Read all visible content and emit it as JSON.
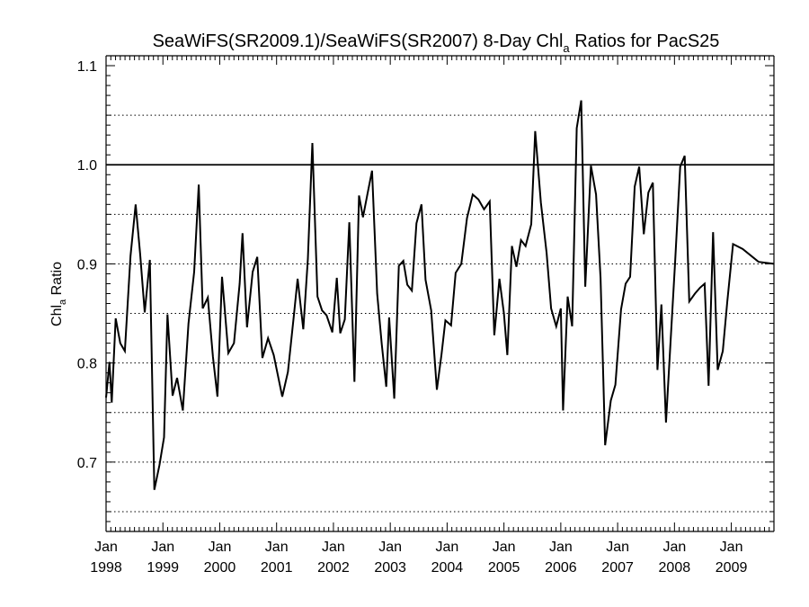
{
  "chart_data": {
    "type": "line",
    "title": {
      "prefix": "SeaWiFS(SR2009.1)/SeaWiFS(SR2007) 8-Day Chl",
      "subscript": "a",
      "suffix": " Ratios for PacS25"
    },
    "ylabel": {
      "prefix": "Chl",
      "subscript": "a",
      "suffix": " Ratio"
    },
    "ylim": [
      0.63,
      1.11
    ],
    "xlim": [
      1998.0,
      2009.75
    ],
    "y_ticks": [
      0.7,
      0.8,
      0.9,
      1.0,
      1.1
    ],
    "y_tick_labels": [
      "0.7",
      "0.8",
      "0.9",
      "1.0",
      "1.1"
    ],
    "y_minor_step": 0.01,
    "x_ticks": [
      {
        "year": 1998,
        "top": "Jan",
        "bottom": "1998"
      },
      {
        "year": 1999,
        "top": "Jan",
        "bottom": "1999"
      },
      {
        "year": 2000,
        "top": "Jan",
        "bottom": "2000"
      },
      {
        "year": 2001,
        "top": "Jan",
        "bottom": "2001"
      },
      {
        "year": 2002,
        "top": "Jan",
        "bottom": "2002"
      },
      {
        "year": 2003,
        "top": "Jan",
        "bottom": "2003"
      },
      {
        "year": 2004,
        "top": "Jan",
        "bottom": "2004"
      },
      {
        "year": 2005,
        "top": "Jan",
        "bottom": "2005"
      },
      {
        "year": 2006,
        "top": "Jan",
        "bottom": "2006"
      },
      {
        "year": 2007,
        "top": "Jan",
        "bottom": "2007"
      },
      {
        "year": 2008,
        "top": "Jan",
        "bottom": "2008"
      },
      {
        "year": 2009,
        "top": "Jan",
        "bottom": "2009"
      }
    ],
    "reference_line": 1.0,
    "dotted_gridlines": [
      0.65,
      0.7,
      0.75,
      0.8,
      0.85,
      0.9,
      0.95,
      1.05
    ],
    "grid": "dotted horizontal",
    "line_color": "#000000",
    "series": [
      {
        "points": [
          [
            1998.0,
            0.765
          ],
          [
            1998.06,
            0.801
          ],
          [
            1998.1,
            0.76
          ],
          [
            1998.17,
            0.845
          ],
          [
            1998.25,
            0.82
          ],
          [
            1998.33,
            0.812
          ],
          [
            1998.43,
            0.908
          ],
          [
            1998.52,
            0.96
          ],
          [
            1998.6,
            0.91
          ],
          [
            1998.68,
            0.851
          ],
          [
            1998.77,
            0.904
          ],
          [
            1998.85,
            0.672
          ],
          [
            1998.94,
            0.697
          ],
          [
            1999.02,
            0.725
          ],
          [
            1999.08,
            0.849
          ],
          [
            1999.17,
            0.767
          ],
          [
            1999.25,
            0.785
          ],
          [
            1999.35,
            0.752
          ],
          [
            1999.45,
            0.84
          ],
          [
            1999.55,
            0.892
          ],
          [
            1999.63,
            0.98
          ],
          [
            1999.7,
            0.855
          ],
          [
            1999.79,
            0.866
          ],
          [
            1999.88,
            0.806
          ],
          [
            1999.96,
            0.766
          ],
          [
            2000.04,
            0.887
          ],
          [
            2000.08,
            0.86
          ],
          [
            2000.15,
            0.81
          ],
          [
            2000.25,
            0.82
          ],
          [
            2000.35,
            0.88
          ],
          [
            2000.4,
            0.931
          ],
          [
            2000.48,
            0.836
          ],
          [
            2000.58,
            0.892
          ],
          [
            2000.66,
            0.907
          ],
          [
            2000.75,
            0.805
          ],
          [
            2000.85,
            0.825
          ],
          [
            2000.95,
            0.808
          ],
          [
            2001.1,
            0.766
          ],
          [
            2001.2,
            0.791
          ],
          [
            2001.3,
            0.846
          ],
          [
            2001.37,
            0.885
          ],
          [
            2001.47,
            0.834
          ],
          [
            2001.55,
            0.905
          ],
          [
            2001.63,
            1.022
          ],
          [
            2001.72,
            0.867
          ],
          [
            2001.8,
            0.853
          ],
          [
            2001.88,
            0.848
          ],
          [
            2001.98,
            0.831
          ],
          [
            2002.06,
            0.886
          ],
          [
            2002.12,
            0.83
          ],
          [
            2002.2,
            0.844
          ],
          [
            2002.28,
            0.942
          ],
          [
            2002.37,
            0.781
          ],
          [
            2002.45,
            0.969
          ],
          [
            2002.52,
            0.947
          ],
          [
            2002.6,
            0.971
          ],
          [
            2002.68,
            0.994
          ],
          [
            2002.77,
            0.87
          ],
          [
            2002.85,
            0.819
          ],
          [
            2002.93,
            0.776
          ],
          [
            2002.98,
            0.846
          ],
          [
            2003.07,
            0.764
          ],
          [
            2003.15,
            0.898
          ],
          [
            2003.23,
            0.903
          ],
          [
            2003.3,
            0.879
          ],
          [
            2003.38,
            0.873
          ],
          [
            2003.46,
            0.941
          ],
          [
            2003.55,
            0.96
          ],
          [
            2003.62,
            0.884
          ],
          [
            2003.72,
            0.853
          ],
          [
            2003.82,
            0.773
          ],
          [
            2003.9,
            0.808
          ],
          [
            2003.97,
            0.843
          ],
          [
            2004.07,
            0.838
          ],
          [
            2004.15,
            0.891
          ],
          [
            2004.25,
            0.9
          ],
          [
            2004.35,
            0.946
          ],
          [
            2004.45,
            0.97
          ],
          [
            2004.55,
            0.965
          ],
          [
            2004.65,
            0.955
          ],
          [
            2004.75,
            0.963
          ],
          [
            2004.83,
            0.828
          ],
          [
            2004.92,
            0.885
          ],
          [
            2005.0,
            0.85
          ],
          [
            2005.06,
            0.808
          ],
          [
            2005.14,
            0.918
          ],
          [
            2005.22,
            0.897
          ],
          [
            2005.3,
            0.924
          ],
          [
            2005.38,
            0.918
          ],
          [
            2005.48,
            0.94
          ],
          [
            2005.55,
            1.034
          ],
          [
            2005.65,
            0.962
          ],
          [
            2005.75,
            0.911
          ],
          [
            2005.83,
            0.855
          ],
          [
            2005.92,
            0.837
          ],
          [
            2006.0,
            0.855
          ],
          [
            2006.04,
            0.752
          ],
          [
            2006.12,
            0.867
          ],
          [
            2006.2,
            0.837
          ],
          [
            2006.28,
            1.037
          ],
          [
            2006.36,
            1.065
          ],
          [
            2006.43,
            0.877
          ],
          [
            2006.53,
            0.999
          ],
          [
            2006.62,
            0.97
          ],
          [
            2006.7,
            0.886
          ],
          [
            2006.78,
            0.717
          ],
          [
            2006.88,
            0.762
          ],
          [
            2006.96,
            0.778
          ],
          [
            2007.06,
            0.854
          ],
          [
            2007.14,
            0.88
          ],
          [
            2007.22,
            0.887
          ],
          [
            2007.3,
            0.978
          ],
          [
            2007.38,
            0.998
          ],
          [
            2007.46,
            0.93
          ],
          [
            2007.54,
            0.972
          ],
          [
            2007.62,
            0.982
          ],
          [
            2007.7,
            0.793
          ],
          [
            2007.77,
            0.859
          ],
          [
            2007.85,
            0.74
          ],
          [
            2007.93,
            0.82
          ],
          [
            2008.01,
            0.901
          ],
          [
            2008.1,
            0.998
          ],
          [
            2008.18,
            1.009
          ],
          [
            2008.26,
            0.862
          ],
          [
            2008.36,
            0.87
          ],
          [
            2008.45,
            0.876
          ],
          [
            2008.53,
            0.88
          ],
          [
            2008.6,
            0.777
          ],
          [
            2008.68,
            0.932
          ],
          [
            2008.76,
            0.793
          ],
          [
            2008.85,
            0.812
          ],
          [
            2008.93,
            0.862
          ],
          [
            2009.03,
            0.92
          ],
          [
            2009.2,
            0.915
          ],
          [
            2009.48,
            0.902
          ],
          [
            2009.75,
            0.9
          ]
        ]
      }
    ]
  }
}
